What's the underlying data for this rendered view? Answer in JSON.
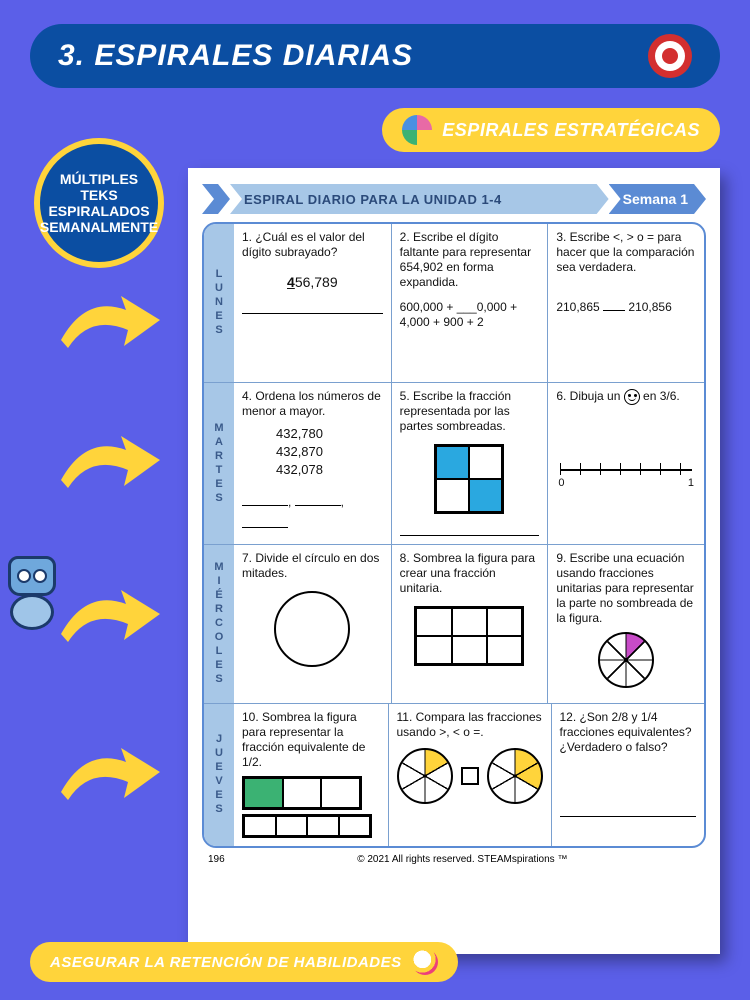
{
  "title": "3. ESPIRALES DIARIAS",
  "pill_top": "ESPIRALES ESTRATÉGICAS",
  "pill_bottom": "ASEGURAR LA RETENCIÓN DE HABILIDADES",
  "badge": "MÚLTIPLES TEKS ESPIRALADOS SEMANALMENTE",
  "arrows_y": [
    290,
    430,
    584,
    742
  ],
  "sheet": {
    "header_mid": "ESPIRAL DIARIO PARA LA UNIDAD 1-4",
    "header_right": "Semana 1",
    "page_num": "196",
    "copyright": "© 2021 All rights reserved. STEAMspirations ™",
    "days": [
      "LUNES",
      "MARTES",
      "MIÉRCOLES",
      "JUEVES"
    ],
    "cells": {
      "r0c0": {
        "q": "1. ¿Cuál es el valor del dígito subrayado?",
        "num_pre": "4",
        "num_rest": "56,789"
      },
      "r0c1": {
        "q": "2. Escribe el dígito faltante para representar 654,902 en forma expandida.",
        "exp": "600,000 + ___0,000 + 4,000 + 900 + 2"
      },
      "r0c2": {
        "q": "3. Escribe <, > o = para hacer que la comparación sea verdadera.",
        "cmp_l": "210,865",
        "cmp_r": "210,856"
      },
      "r1c0": {
        "q": "4. Ordena los números de menor a mayor.",
        "nums": [
          "432,780",
          "432,870",
          "432,078"
        ]
      },
      "r1c1": {
        "q": "5. Escribe la fracción representada por las partes sombreadas."
      },
      "r1c2": {
        "q_a": "6. Dibuja un ",
        "q_b": " en 3/6.",
        "axis_l": "0",
        "axis_r": "1"
      },
      "r2c0": {
        "q": "7. Divide el círculo en dos mitades."
      },
      "r2c1": {
        "q": "8. Sombrea la figura para crear una fracción unitaria."
      },
      "r2c2": {
        "q": "9. Escribe una ecuación usando fracciones unitarias para representar la parte no sombreada de la figura."
      },
      "r3c0": {
        "q": "10. Sombrea la figura para representar la fracción equivalente de 1/2."
      },
      "r3c1": {
        "q": "11. Compara las fracciones usando >, < o =."
      },
      "r3c2": {
        "q": "12. ¿Son 2/8 y 1/4 fracciones equivalentes? ¿Verdadero o falso?"
      }
    }
  },
  "colors": {
    "bg": "#5b5fe8",
    "navy": "#0b4ea2",
    "yellow": "#ffd43b",
    "lblue": "#a7c7e7",
    "mblue": "#5b8bd4",
    "shade_blue": "#2aa8e0",
    "shade_green": "#3bb273",
    "shade_mag": "#c84bc8"
  }
}
